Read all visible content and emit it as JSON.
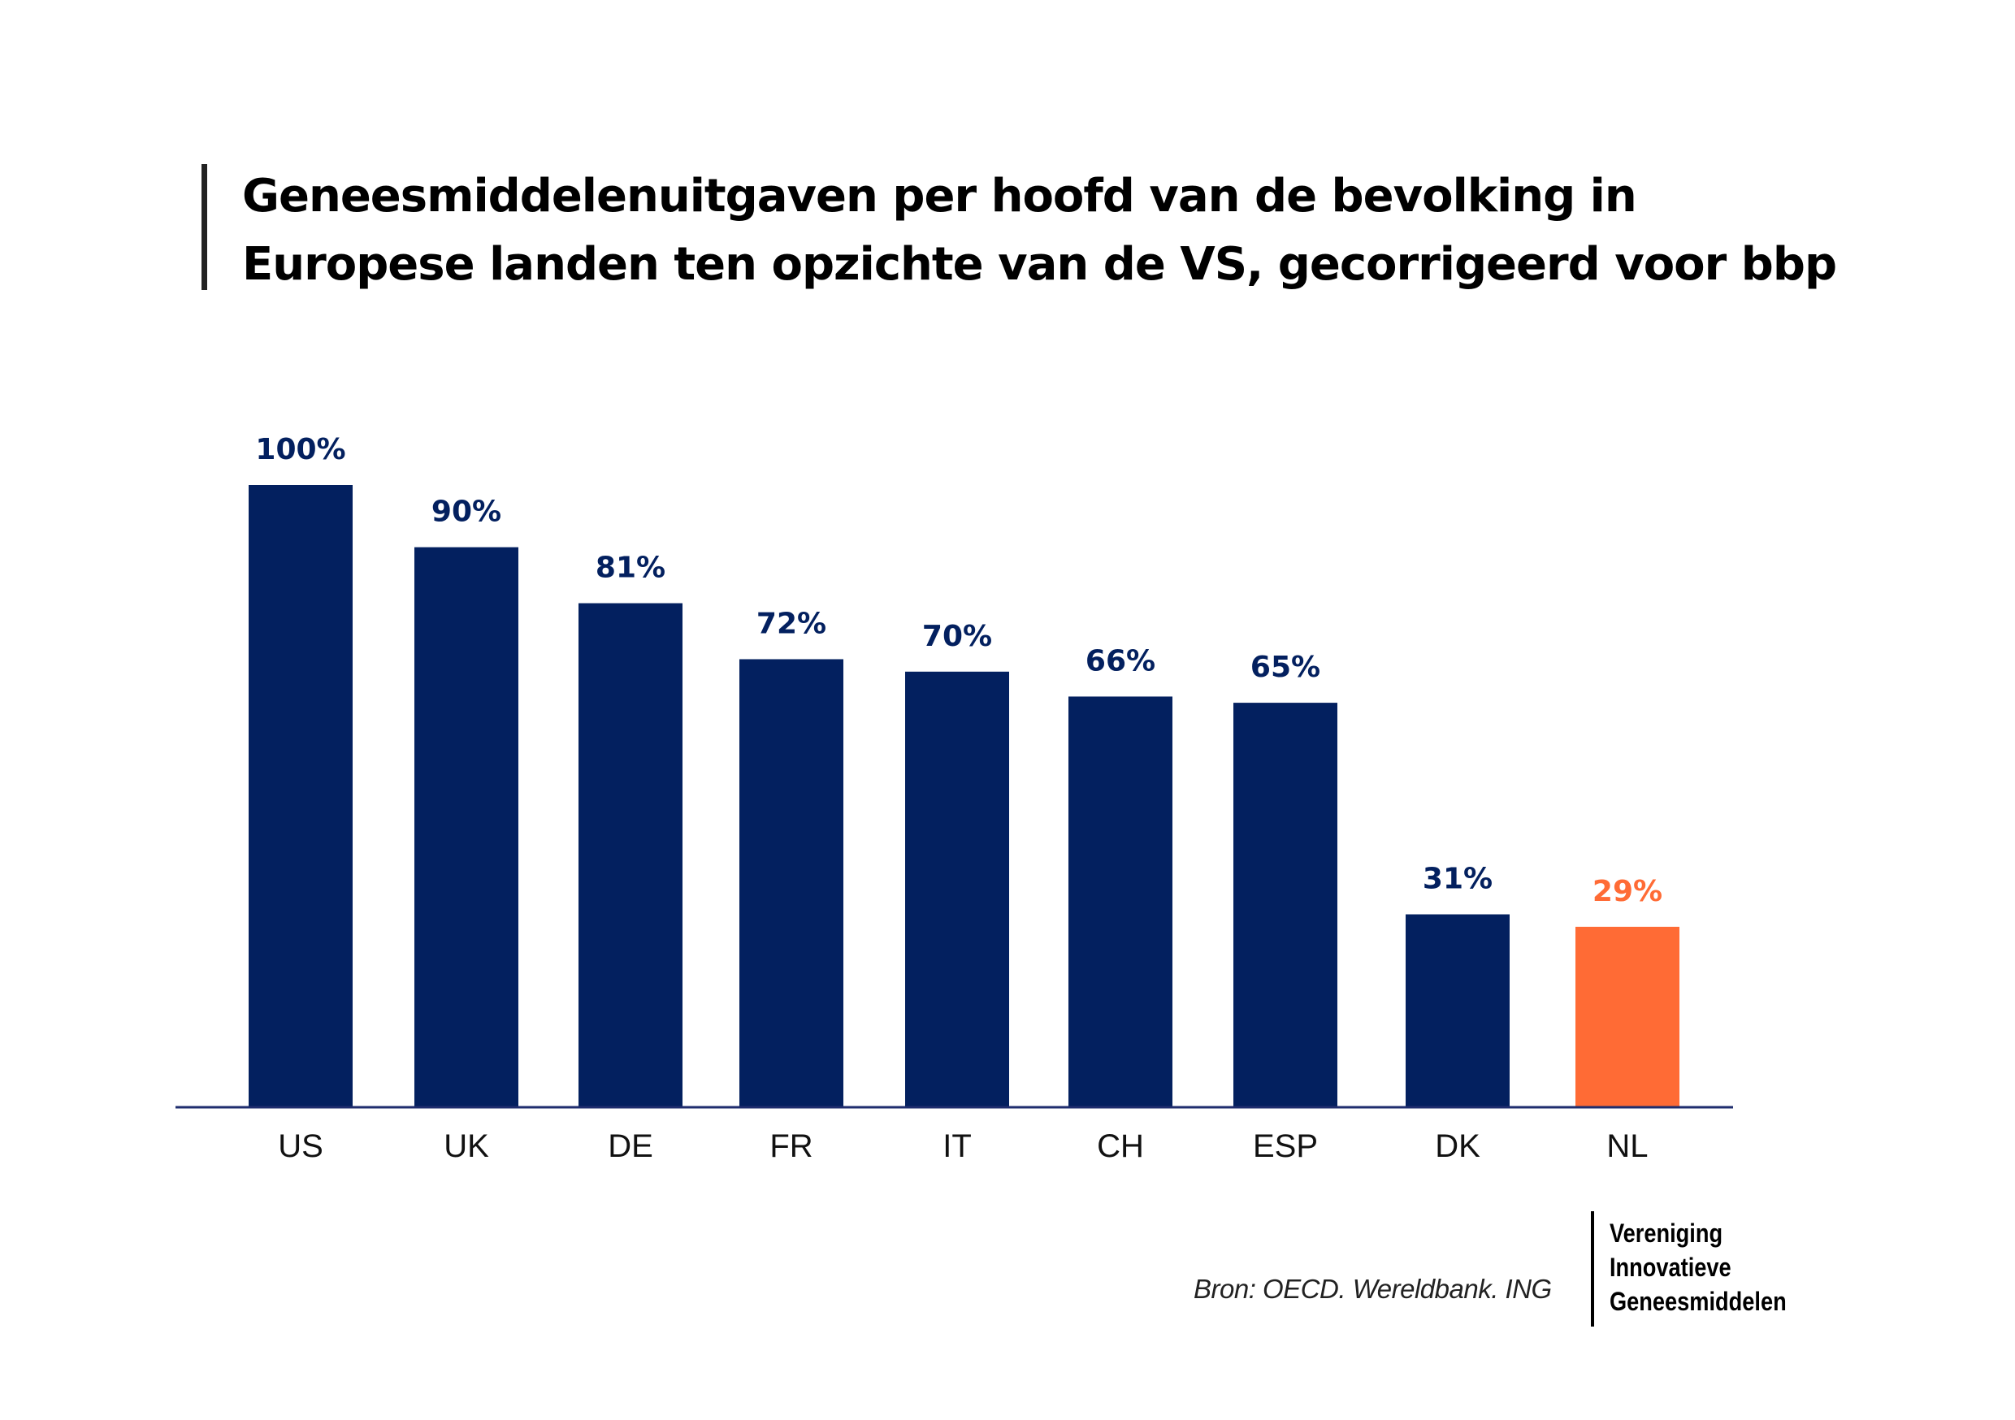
{
  "chart_data": {
    "type": "bar",
    "title": "Geneesmiddelenuitgaven per hoofd van de bevolking in Europese landen ten opzichte van de VS, gecorrigeerd voor bbp",
    "title_lines": [
      "Geneesmiddelenuitgaven per hoofd van de bevolking in",
      "Europese landen ten opzichte van de VS, gecorrigeerd voor bbp"
    ],
    "categories": [
      "US",
      "UK",
      "DE",
      "FR",
      "IT",
      "CH",
      "ESP",
      "DK",
      "NL"
    ],
    "values": [
      100,
      90,
      81,
      72,
      70,
      66,
      65,
      31,
      29
    ],
    "value_labels": [
      "100%",
      "90%",
      "81%",
      "72%",
      "70%",
      "66%",
      "65%",
      "31%",
      "29%"
    ],
    "highlight": [
      "NL"
    ],
    "xlabel": "",
    "ylabel": "",
    "ylim": [
      0,
      100
    ],
    "grid": false,
    "colors": {
      "default": "#03205f",
      "highlight": "#ff6b35",
      "axis": "#1f2d6e"
    }
  },
  "footer": {
    "source": "Bron: OECD. Wereldbank. ING",
    "logo_lines": [
      "Vereniging",
      "Innovatieve",
      "Geneesmiddelen"
    ]
  }
}
